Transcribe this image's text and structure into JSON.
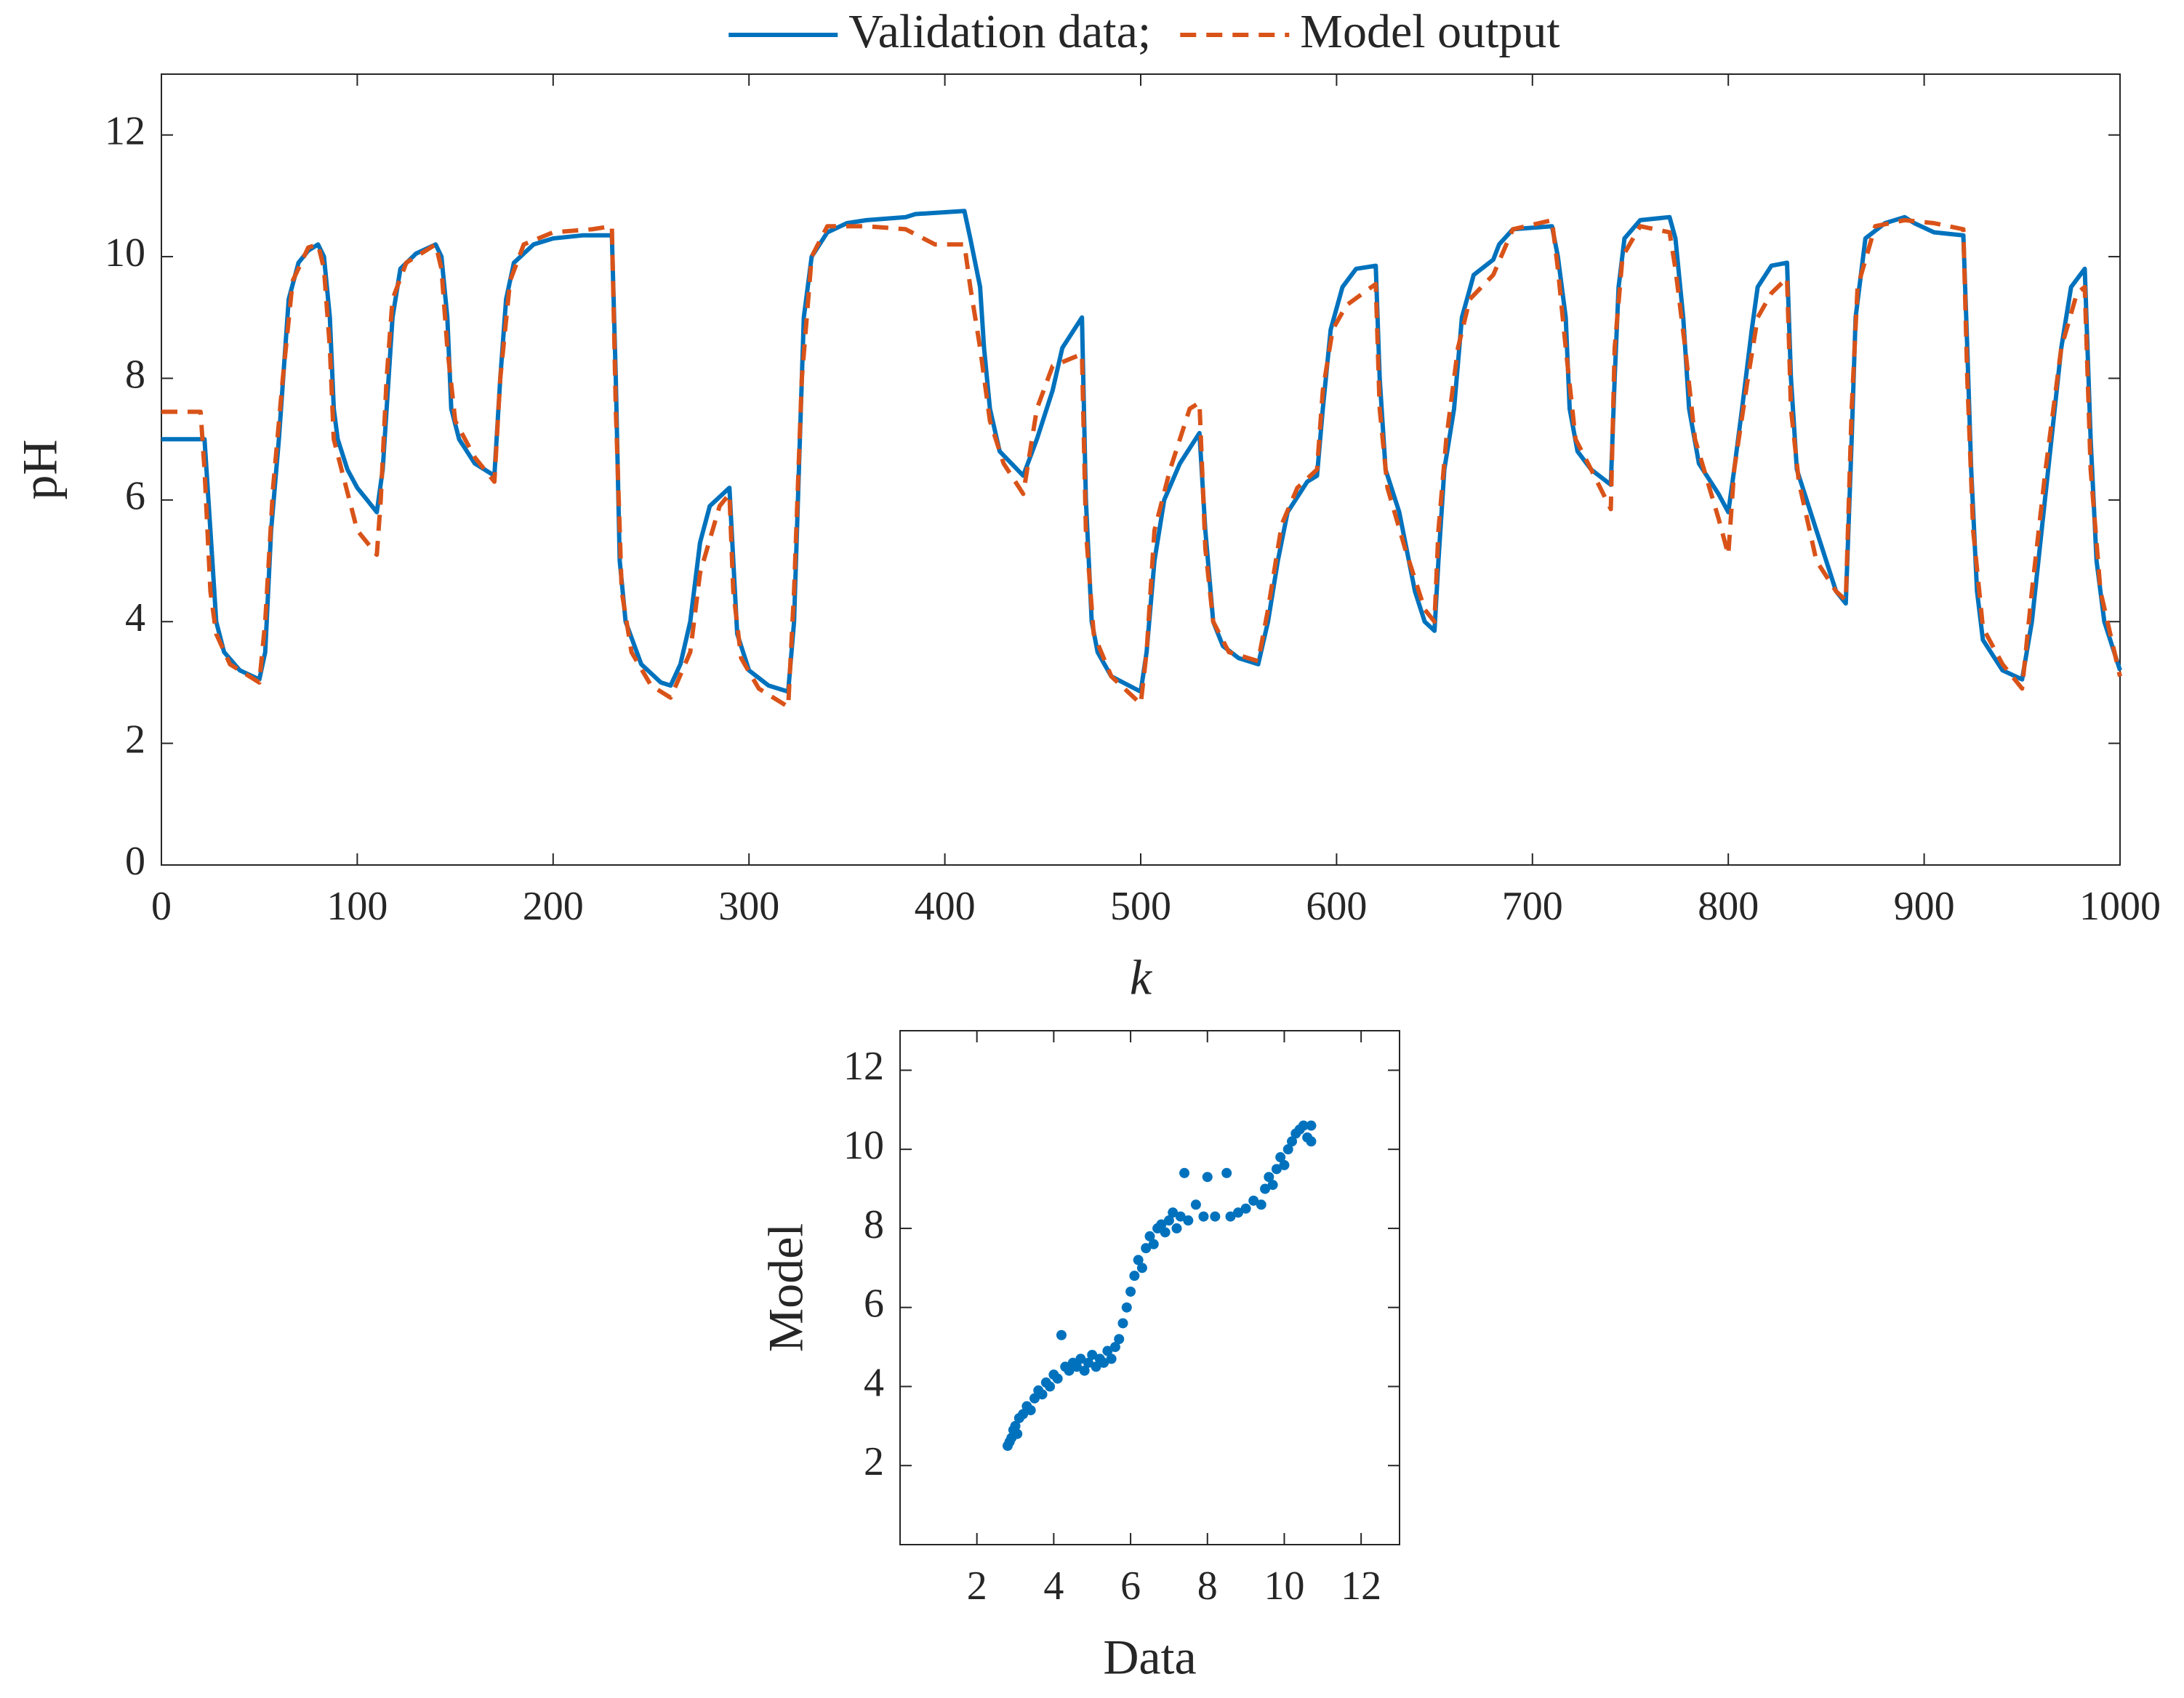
{
  "chart_data": [
    {
      "type": "line",
      "xlabel": "k",
      "ylabel": "pH",
      "xlim": [
        0,
        1000
      ],
      "ylim": [
        0,
        13
      ],
      "xticks": [
        0,
        100,
        200,
        300,
        400,
        500,
        600,
        700,
        800,
        900,
        1000
      ],
      "yticks": [
        0,
        2,
        4,
        6,
        8,
        10,
        12
      ],
      "legend": "top",
      "series": [
        {
          "name": "Validation data;",
          "color": "#0072bd",
          "style": "solid",
          "x": [
            0,
            20,
            22,
            25,
            28,
            32,
            40,
            50,
            53,
            56,
            60,
            65,
            70,
            75,
            80,
            83,
            86,
            88,
            90,
            95,
            100,
            105,
            110,
            113,
            115,
            118,
            122,
            130,
            140,
            143,
            146,
            148,
            152,
            160,
            170,
            173,
            176,
            180,
            190,
            200,
            215,
            230,
            232,
            234,
            237,
            245,
            255,
            260,
            265,
            270,
            275,
            280,
            290,
            292,
            294,
            300,
            310,
            320,
            323,
            326,
            328,
            332,
            340,
            350,
            360,
            380,
            385,
            410,
            413,
            418,
            420,
            423,
            428,
            440,
            447,
            455,
            460,
            470,
            472,
            475,
            478,
            485,
            500,
            503,
            507,
            512,
            520,
            530,
            533,
            537,
            542,
            550,
            560,
            565,
            570,
            575,
            585,
            590,
            593,
            597,
            603,
            610,
            620,
            622,
            625,
            632,
            640,
            645,
            650,
            652,
            655,
            660,
            664,
            670,
            680,
            683,
            690,
            710,
            713,
            717,
            719,
            723,
            730,
            740,
            742,
            744,
            747,
            755,
            770,
            773,
            777,
            780,
            785,
            795,
            800,
            803,
            807,
            812,
            815,
            822,
            830,
            832,
            835,
            845,
            855,
            860,
            863,
            865,
            870,
            880,
            890,
            895,
            905,
            920,
            922,
            924,
            927,
            930,
            940,
            950,
            955,
            960,
            965,
            970,
            975,
            982,
            985,
            988,
            992,
            1000
          ],
          "values": [
            7,
            7,
            7,
            5.5,
            4,
            3.5,
            3.2,
            3.05,
            3.5,
            5.5,
            7,
            9.3,
            9.9,
            10.1,
            10.2,
            10,
            9,
            7.5,
            7,
            6.5,
            6.2,
            6,
            5.8,
            6.5,
            7.5,
            9,
            9.8,
            10.05,
            10.2,
            10,
            9,
            7.5,
            7,
            6.6,
            6.4,
            8,
            9.3,
            9.9,
            10.2,
            10.3,
            10.35,
            10.35,
            8,
            5,
            4,
            3.3,
            3,
            2.95,
            3.3,
            4,
            5.3,
            5.9,
            6.2,
            5,
            3.8,
            3.2,
            2.95,
            2.85,
            4,
            7,
            9,
            10,
            10.4,
            10.55,
            10.6,
            10.65,
            10.7,
            10.75,
            10.3,
            9.5,
            8.5,
            7.5,
            6.8,
            6.4,
            7,
            7.8,
            8.5,
            9,
            6,
            4,
            3.5,
            3.1,
            2.85,
            3.5,
            5,
            6,
            6.6,
            7.1,
            5.5,
            4,
            3.6,
            3.4,
            3.3,
            4,
            5,
            5.8,
            6.3,
            6.4,
            7.5,
            8.8,
            9.5,
            9.8,
            9.85,
            8,
            6.5,
            5.8,
            4.5,
            4,
            3.85,
            5,
            6.5,
            7.5,
            9,
            9.7,
            9.95,
            10.2,
            10.45,
            10.5,
            10,
            9,
            7.5,
            6.8,
            6.5,
            6.25,
            8,
            9.5,
            10.3,
            10.6,
            10.65,
            10.3,
            9,
            7.5,
            6.6,
            6.1,
            5.8,
            6.5,
            7.5,
            8.8,
            9.5,
            9.85,
            9.9,
            8,
            6.5,
            5.5,
            4.5,
            4.3,
            7,
            9,
            10.3,
            10.55,
            10.65,
            10.55,
            10.4,
            10.35,
            8.5,
            6.5,
            4.5,
            3.7,
            3.2,
            3.05,
            4,
            5.5,
            7,
            8.5,
            9.5,
            9.8,
            7,
            5,
            4,
            3.2
          ]
        },
        {
          "name": "Model output",
          "color": "#d95319",
          "style": "dashed",
          "x": [
            0,
            20,
            22,
            25,
            28,
            35,
            50,
            53,
            57,
            62,
            67,
            75,
            80,
            83,
            86,
            88,
            92,
            100,
            105,
            110,
            112,
            115,
            118,
            125,
            140,
            143,
            146,
            150,
            160,
            170,
            173,
            178,
            185,
            200,
            220,
            230,
            232,
            235,
            240,
            250,
            260,
            270,
            275,
            285,
            290,
            292,
            296,
            305,
            320,
            323,
            327,
            332,
            340,
            360,
            380,
            395,
            410,
            413,
            418,
            423,
            430,
            440,
            447,
            455,
            470,
            472,
            476,
            485,
            500,
            503,
            507,
            515,
            525,
            530,
            533,
            537,
            545,
            560,
            565,
            572,
            580,
            590,
            593,
            598,
            605,
            620,
            622,
            626,
            635,
            645,
            650,
            652,
            656,
            662,
            668,
            680,
            690,
            710,
            713,
            717,
            722,
            730,
            740,
            742,
            746,
            755,
            770,
            773,
            778,
            783,
            795,
            800,
            803,
            810,
            815,
            822,
            830,
            832,
            836,
            845,
            855,
            860,
            863,
            866,
            875,
            890,
            905,
            920,
            922,
            925,
            930,
            940,
            950,
            955,
            962,
            970,
            978,
            982,
            985,
            990,
            1000
          ],
          "values": [
            7.45,
            7.45,
            6.5,
            4.5,
            3.8,
            3.3,
            3,
            4,
            6.2,
            8,
            9.6,
            10.15,
            10.2,
            9.8,
            8.5,
            7,
            6.5,
            5.5,
            5.3,
            5.1,
            6,
            8,
            9.3,
            9.9,
            10.2,
            9.8,
            8.5,
            7.3,
            6.7,
            6.3,
            8,
            9.6,
            10.2,
            10.4,
            10.45,
            10.5,
            7.5,
            4.5,
            3.5,
            2.95,
            2.75,
            3.5,
            4.8,
            5.9,
            6.1,
            4.5,
            3.4,
            2.9,
            2.6,
            4.5,
            8,
            10,
            10.5,
            10.5,
            10.45,
            10.2,
            10.2,
            9.5,
            8.5,
            7.3,
            6.6,
            6.1,
            7.5,
            8.2,
            8.4,
            5.5,
            3.8,
            3.1,
            2.65,
            3.5,
            5.5,
            6.5,
            7.5,
            7.6,
            5.2,
            4,
            3.5,
            3.35,
            4.2,
            5.6,
            6.2,
            6.5,
            7.8,
            8.8,
            9.2,
            9.55,
            7.5,
            6.2,
            5.2,
            4.2,
            4,
            5.5,
            7,
            8.5,
            9.3,
            9.7,
            10.45,
            10.6,
            9.8,
            8.5,
            7,
            6.5,
            5.85,
            8.5,
            10,
            10.5,
            10.4,
            9.8,
            8.5,
            7,
            5.7,
            5.1,
            6.5,
            8,
            9,
            9.4,
            9.65,
            7.5,
            6.3,
            5,
            4.5,
            4.35,
            7.5,
            9.5,
            10.5,
            10.6,
            10.55,
            10.45,
            8,
            5.5,
            3.9,
            3.3,
            2.9,
            4.5,
            6.5,
            8.5,
            9.4,
            9.5,
            6.5,
            4.5,
            3.1
          ]
        }
      ]
    },
    {
      "type": "scatter",
      "xlabel": "Data",
      "ylabel": "Model",
      "xlim": [
        0,
        13
      ],
      "ylim": [
        0,
        13
      ],
      "xticks": [
        2,
        4,
        6,
        8,
        10,
        12
      ],
      "yticks": [
        2,
        4,
        6,
        8,
        10,
        12
      ],
      "color": "#0072bd",
      "x": [
        2.8,
        2.85,
        2.9,
        2.95,
        3.0,
        3.05,
        3.1,
        3.2,
        3.3,
        3.4,
        3.5,
        3.6,
        3.7,
        3.8,
        3.9,
        4.0,
        4.1,
        4.2,
        4.3,
        4.4,
        4.5,
        4.6,
        4.7,
        4.8,
        4.9,
        5.0,
        5.1,
        5.2,
        5.3,
        5.4,
        5.5,
        5.6,
        5.7,
        5.8,
        5.9,
        6.0,
        6.1,
        6.2,
        6.3,
        6.4,
        6.5,
        6.6,
        6.7,
        6.8,
        6.9,
        7.0,
        7.1,
        7.2,
        7.3,
        7.4,
        7.5,
        7.7,
        7.9,
        8.0,
        8.2,
        8.5,
        8.6,
        8.8,
        9.0,
        9.2,
        9.4,
        9.5,
        9.6,
        9.7,
        9.8,
        9.9,
        10.0,
        10.1,
        10.2,
        10.3,
        10.4,
        10.5,
        10.6,
        10.7,
        10.7
      ],
      "values": [
        2.5,
        2.6,
        2.7,
        2.9,
        3.0,
        2.8,
        3.2,
        3.3,
        3.5,
        3.4,
        3.7,
        3.9,
        3.8,
        4.1,
        4.0,
        4.3,
        4.2,
        5.3,
        4.5,
        4.4,
        4.6,
        4.5,
        4.7,
        4.4,
        4.6,
        4.8,
        4.5,
        4.7,
        4.6,
        4.9,
        4.7,
        5.0,
        5.2,
        5.6,
        6.0,
        6.4,
        6.8,
        7.2,
        7.0,
        7.5,
        7.8,
        7.6,
        8.0,
        8.1,
        7.9,
        8.2,
        8.4,
        8.0,
        8.3,
        9.4,
        8.2,
        8.6,
        8.3,
        9.3,
        8.3,
        9.4,
        8.3,
        8.4,
        8.5,
        8.7,
        8.6,
        9.0,
        9.3,
        9.1,
        9.5,
        9.8,
        9.6,
        10.0,
        10.2,
        10.4,
        10.5,
        10.6,
        10.3,
        10.2,
        10.6
      ]
    }
  ]
}
